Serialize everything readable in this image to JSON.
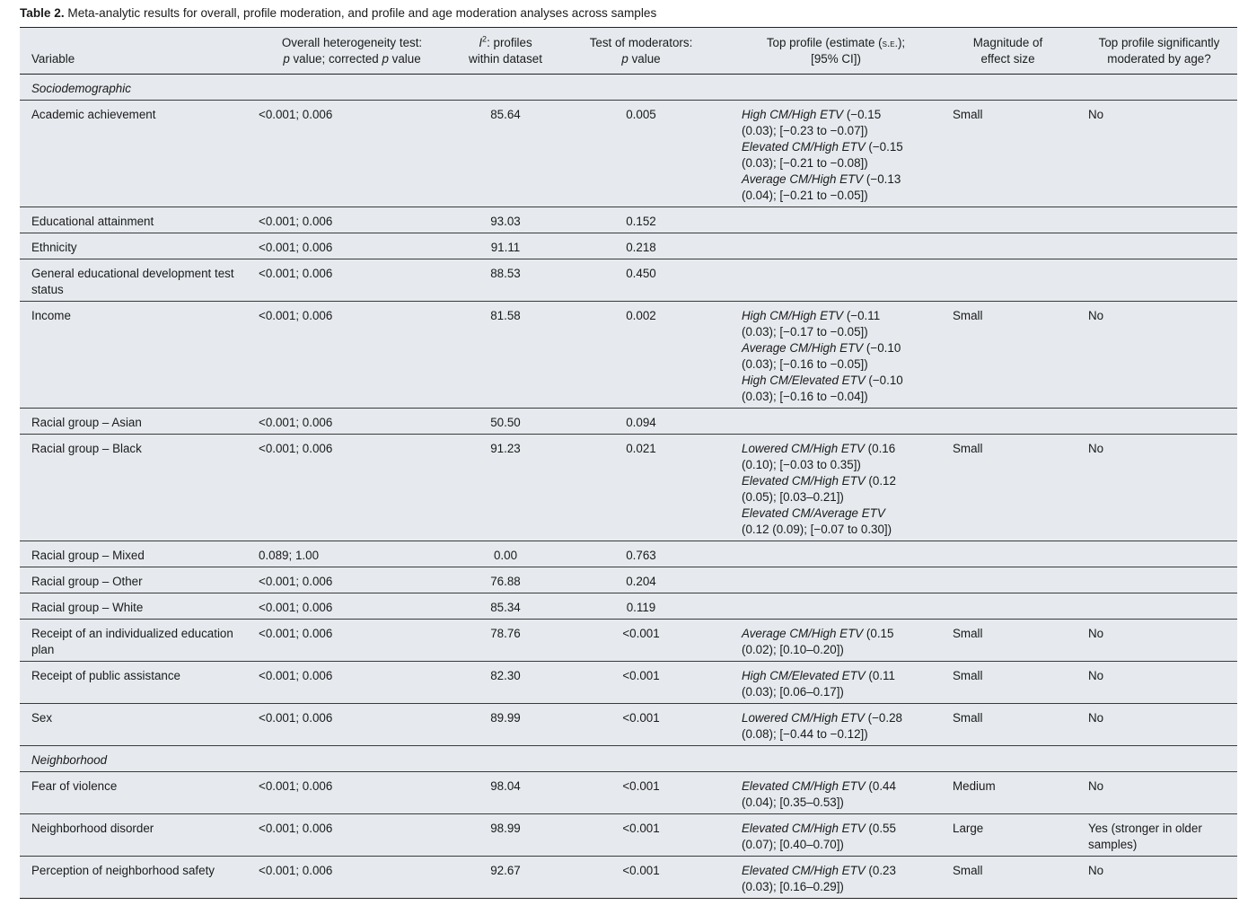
{
  "caption": {
    "label": "Table 2.",
    "text": "Meta-analytic results for overall, profile moderation, and profile and age moderation analyses across samples"
  },
  "headers": {
    "variable": "Variable",
    "het_line1": "Overall heterogeneity test:",
    "het_line2_pre": "p",
    "het_line2_mid": " value; corrected ",
    "het_line2_p": "p",
    "het_line2_post": " value",
    "i2_sym": "I",
    "i2_sup": "2",
    "i2_line1_post": ": profiles",
    "i2_line2": "within dataset",
    "mod_line1": "Test of moderators:",
    "mod_line2_p": "p",
    "mod_line2_post": " value",
    "top_line1_pre": "Top profile (estimate (",
    "top_line1_se": "s.e.",
    "top_line1_post": ");",
    "top_line2": "[95% CI])",
    "mag_line1": "Magnitude of",
    "mag_line2": "effect size",
    "age_line1": "Top profile significantly",
    "age_line2": "moderated by age?"
  },
  "rows": [
    {
      "section": "Sociodemographic"
    },
    {
      "variable": "Academic achievement",
      "het": "<0.001; 0.006",
      "i2": "85.64",
      "mod": "0.005",
      "profiles": [
        {
          "name": "High CM/High ETV",
          "l1": " (−0.15",
          "l2": "(0.03); [−0.23 to −0.07])"
        },
        {
          "name": "Elevated CM/High ETV",
          "l1": " (−0.15",
          "l2": "(0.03); [−0.21 to −0.08])"
        },
        {
          "name": "Average CM/High ETV",
          "l1": " (−0.13",
          "l2": "(0.04); [−0.21 to −0.05])"
        }
      ],
      "mag": "Small",
      "age": "No"
    },
    {
      "variable": "Educational attainment",
      "het": "<0.001; 0.006",
      "i2": "93.03",
      "mod": "0.152",
      "profiles": [],
      "mag": "",
      "age": ""
    },
    {
      "variable": "Ethnicity",
      "het": "<0.001; 0.006",
      "i2": "91.11",
      "mod": "0.218",
      "profiles": [],
      "mag": "",
      "age": ""
    },
    {
      "variable": "General educational development test status",
      "het": "<0.001; 0.006",
      "i2": "88.53",
      "mod": "0.450",
      "profiles": [],
      "mag": "",
      "age": ""
    },
    {
      "variable": "Income",
      "het": "<0.001; 0.006",
      "i2": "81.58",
      "mod": "0.002",
      "profiles": [
        {
          "name": "High CM/High ETV",
          "l1": " (−0.11",
          "l2": "(0.03); [−0.17 to −0.05])"
        },
        {
          "name": "Average CM/High ETV",
          "l1": " (−0.10",
          "l2": "(0.03); [−0.16 to −0.05])"
        },
        {
          "name": "High CM/Elevated ETV",
          "l1": " (−0.10",
          "l2": "(0.03); [−0.16 to −0.04])"
        }
      ],
      "mag": "Small",
      "age": "No"
    },
    {
      "variable": "Racial group – Asian",
      "het": "<0.001; 0.006",
      "i2": "50.50",
      "mod": "0.094",
      "profiles": [],
      "mag": "",
      "age": ""
    },
    {
      "variable": "Racial group – Black",
      "het": "<0.001; 0.006",
      "i2": "91.23",
      "mod": "0.021",
      "profiles": [
        {
          "name": "Lowered CM/High ETV",
          "l1": " (0.16",
          "l2": "(0.10); [−0.03 to 0.35])"
        },
        {
          "name": "Elevated CM/High ETV",
          "l1": " (0.12",
          "l2": "(0.05); [0.03–0.21])"
        },
        {
          "name": "Elevated CM/Average ETV",
          "l1": "",
          "l2": "(0.12 (0.09); [−0.07 to 0.30])"
        }
      ],
      "mag": "Small",
      "age": "No"
    },
    {
      "variable": "Racial group – Mixed",
      "het": "0.089; 1.00",
      "i2": "0.00",
      "mod": "0.763",
      "profiles": [],
      "mag": "",
      "age": ""
    },
    {
      "variable": "Racial group – Other",
      "het": "<0.001; 0.006",
      "i2": "76.88",
      "mod": "0.204",
      "profiles": [],
      "mag": "",
      "age": ""
    },
    {
      "variable": "Racial group – White",
      "het": "<0.001; 0.006",
      "i2": "85.34",
      "mod": "0.119",
      "profiles": [],
      "mag": "",
      "age": ""
    },
    {
      "variable": "Receipt of an individualized education plan",
      "het": "<0.001; 0.006",
      "i2": "78.76",
      "mod": "<0.001",
      "profiles": [
        {
          "name": "Average CM/High ETV",
          "l1": " (0.15",
          "l2": "(0.02); [0.10–0.20])"
        }
      ],
      "mag": "Small",
      "age": "No"
    },
    {
      "variable": "Receipt of public assistance",
      "het": "<0.001; 0.006",
      "i2": "82.30",
      "mod": "<0.001",
      "profiles": [
        {
          "name": "High CM/Elevated ETV",
          "l1": " (0.11",
          "l2": "(0.03); [0.06–0.17])"
        }
      ],
      "mag": "Small",
      "age": "No"
    },
    {
      "variable": "Sex",
      "het": "<0.001; 0.006",
      "i2": "89.99",
      "mod": "<0.001",
      "profiles": [
        {
          "name": "Lowered CM/High ETV",
          "l1": " (−0.28",
          "l2": "(0.08); [−0.44 to −0.12])"
        }
      ],
      "mag": "Small",
      "age": "No"
    },
    {
      "section": "Neighborhood"
    },
    {
      "variable": "Fear of violence",
      "het": "<0.001; 0.006",
      "i2": "98.04",
      "mod": "<0.001",
      "profiles": [
        {
          "name": "Elevated CM/High ETV",
          "l1": " (0.44",
          "l2": "(0.04); [0.35–0.53])"
        }
      ],
      "mag": "Medium",
      "age": "No"
    },
    {
      "variable": "Neighborhood disorder",
      "het": "<0.001; 0.006",
      "i2": "98.99",
      "mod": "<0.001",
      "profiles": [
        {
          "name": "Elevated CM/High ETV",
          "l1": " (0.55",
          "l2": "(0.07); [0.40–0.70])"
        }
      ],
      "mag": "Large",
      "age": "Yes (stronger in older samples)"
    },
    {
      "variable": "Perception of neighborhood safety",
      "het": "<0.001; 0.006",
      "i2": "92.67",
      "mod": "<0.001",
      "profiles": [
        {
          "name": "Elevated CM/High ETV",
          "l1": " (0.23",
          "l2": "(0.03); [0.16–0.29])"
        }
      ],
      "mag": "Small",
      "age": "No"
    }
  ]
}
